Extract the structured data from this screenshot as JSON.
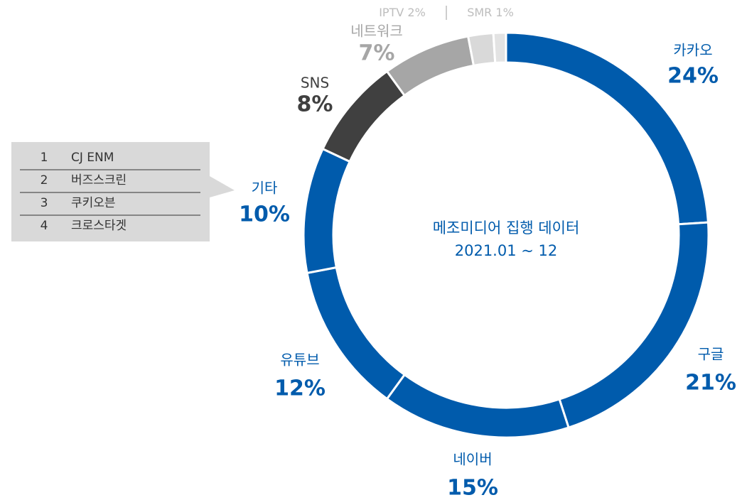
{
  "chart_data": {
    "type": "pie",
    "donut": true,
    "center_text": [
      "메조미디어 집행 데이터",
      "2021.01 ~ 12"
    ],
    "categories": [
      "카카오",
      "구글",
      "네이버",
      "유튜브",
      "기타",
      "SNS",
      "네트워크",
      "IPTV",
      "SMR"
    ],
    "values": [
      24,
      21,
      15,
      12,
      10,
      8,
      7,
      2,
      1
    ],
    "value_labels": [
      "24%",
      "21%",
      "15%",
      "12%",
      "10%",
      "8%",
      "7%",
      "2%",
      "1%"
    ],
    "colors": [
      "#005bac",
      "#005bac",
      "#005bac",
      "#005bac",
      "#005bac",
      "#404040",
      "#a6a6a6",
      "#d9d9d9",
      "#e3e3e3"
    ],
    "label_colors": [
      "#005bac",
      "#005bac",
      "#005bac",
      "#005bac",
      "#005bac",
      "#404040",
      "#a6a6a6",
      "#bdbdbd",
      "#bdbdbd"
    ],
    "callout": {
      "items": [
        {
          "rank": 1,
          "name": "CJ ENM"
        },
        {
          "rank": 2,
          "name": "버즈스크린"
        },
        {
          "rank": 3,
          "name": "쿠키오븐"
        },
        {
          "rank": 4,
          "name": "크로스타겟"
        }
      ]
    }
  }
}
